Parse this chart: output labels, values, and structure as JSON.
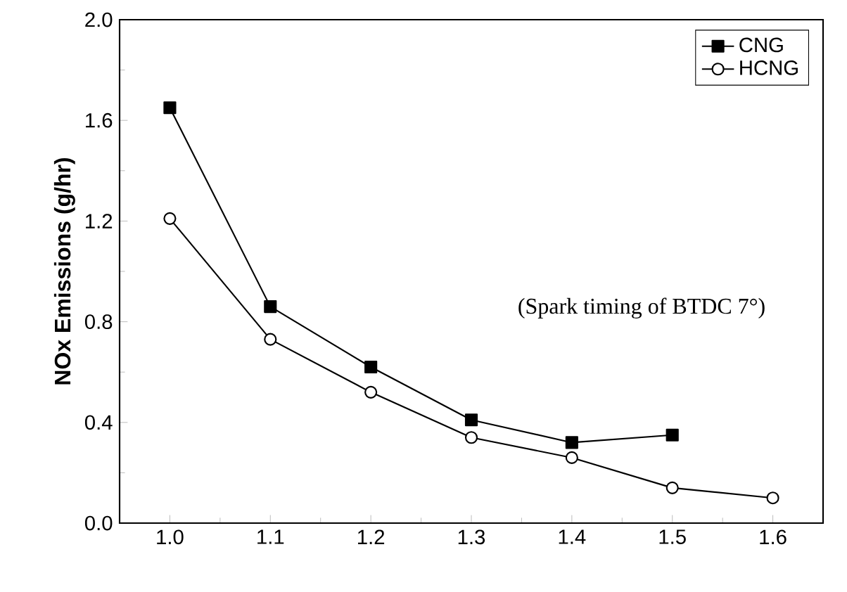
{
  "chart_data": {
    "type": "line",
    "ylabel": "NOx Emissions (g/hr)",
    "annotations": [
      "(Spark timing of BTDC 7°)"
    ],
    "xlim": [
      0.95,
      1.65
    ],
    "xticks": [
      {
        "value": 1.0,
        "label": "1.0"
      },
      {
        "value": 1.1,
        "label": "1.1"
      },
      {
        "value": 1.2,
        "label": "1.2"
      },
      {
        "value": 1.3,
        "label": "1.3"
      },
      {
        "value": 1.4,
        "label": "1.4"
      },
      {
        "value": 1.5,
        "label": "1.5"
      },
      {
        "value": 1.6,
        "label": "1.6"
      }
    ],
    "ylim": [
      0,
      2.0
    ],
    "yticks": [
      {
        "value": 0,
        "label": "0.0"
      },
      {
        "value": 0.4,
        "label": "0.4"
      },
      {
        "value": 0.8,
        "label": "0.8"
      },
      {
        "value": 1.2,
        "label": "1.2"
      },
      {
        "value": 1.6,
        "label": "1.6"
      },
      {
        "value": 2.0,
        "label": "2.0"
      }
    ],
    "legend": "top right",
    "grid": false,
    "line_style": "solid",
    "series": [
      {
        "name": "CNG",
        "color": "#000000",
        "marker": "square",
        "x": [
          1.0,
          1.1,
          1.2,
          1.3,
          1.4,
          1.5
        ],
        "values": [
          1.65,
          0.86,
          0.62,
          0.41,
          0.32,
          0.35
        ]
      },
      {
        "name": "HCNG",
        "color": "#000000",
        "marker": "circle",
        "x": [
          1.0,
          1.1,
          1.2,
          1.3,
          1.4,
          1.5,
          1.6
        ],
        "values": [
          1.21,
          0.73,
          0.52,
          0.34,
          0.26,
          0.14,
          0.1
        ]
      }
    ]
  }
}
